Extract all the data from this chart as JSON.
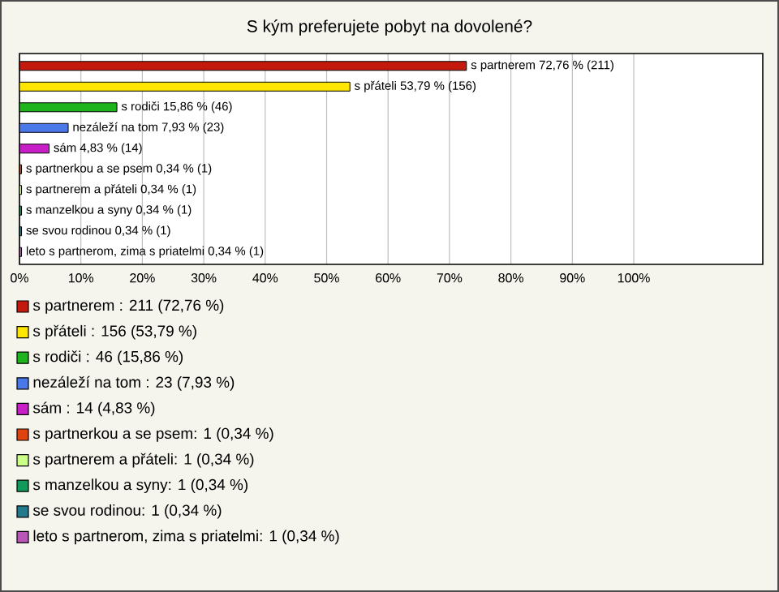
{
  "chart_data": {
    "type": "bar",
    "orientation": "horizontal",
    "title": "S kým preferujete pobyt na dovolené?",
    "categories": [
      null,
      null,
      null,
      null,
      null,
      null,
      null,
      null,
      null,
      null
    ],
    "values": [
      72.76,
      53.79,
      15.86,
      7.93,
      4.83,
      0.34,
      0.34,
      0.34,
      0.34,
      0.34
    ],
    "value_labels": [
      "s partnerem  72,76 % (211)",
      "s přáteli  53,79 % (156)",
      "s rodiči  15,86 % (46)",
      "nezáleží na tom  7,93 % (23)",
      "sám  4,83 % (14)",
      "s partnerkou a se psem 0,34 % (1)",
      "s partnerem a přáteli 0,34 % (1)",
      "s manzelkou a syny 0,34 % (1)",
      "se svou rodinou 0,34 % (1)",
      "leto s partnerom, zima s priatelmi 0,34 % (1)"
    ],
    "colors": [
      "#c41a0e",
      "#ffe600",
      "#1eb41e",
      "#4a78e8",
      "#c81ec8",
      "#e0440e",
      "#ccff88",
      "#129a5a",
      "#237a8c",
      "#b857b8"
    ],
    "xlim": [
      0,
      121
    ],
    "xticks": [
      {
        "value": 0,
        "label": "0%"
      },
      {
        "value": 10,
        "label": "10%"
      },
      {
        "value": 20,
        "label": "20%"
      },
      {
        "value": 30,
        "label": "30%"
      },
      {
        "value": 40,
        "label": "40%"
      },
      {
        "value": 50,
        "label": "50%"
      },
      {
        "value": 60,
        "label": "60%"
      },
      {
        "value": 70,
        "label": "70%"
      },
      {
        "value": 80,
        "label": "80%"
      },
      {
        "value": 90,
        "label": "90%"
      },
      {
        "value": 100,
        "label": "100%"
      }
    ],
    "grid": "x",
    "annotations": [
      "s partnerem : 211 (72,76 %)",
      "s přáteli : 156 (53,79 %)",
      "s rodiči : 46 (15,86 %)",
      "nezáleží na tom : 23 (7,93 %)",
      "sám : 14 (4,83 %)",
      "s partnerkou a se psem: 1 (0,34 %)",
      "s partnerem a přáteli: 1 (0,34 %)",
      "s manzelkou a syny: 1 (0,34 %)",
      "se svou rodinou: 1 (0,34 %)",
      "leto s partnerom, zima s priatelmi: 1 (0,34 %)"
    ]
  }
}
